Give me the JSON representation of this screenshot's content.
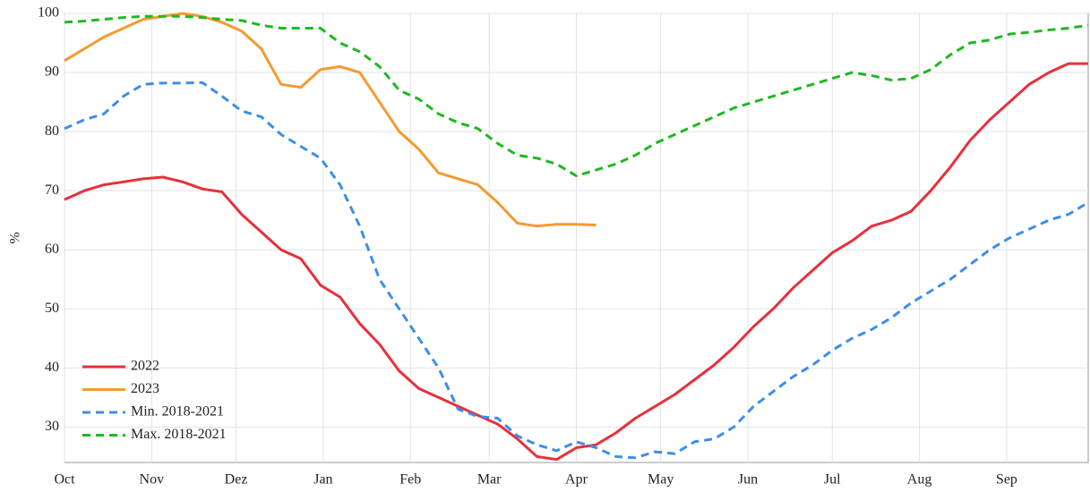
{
  "chart_data": {
    "type": "line",
    "ylabel": "%",
    "x": [
      0,
      7,
      14,
      21,
      28,
      35,
      42,
      49,
      56,
      63,
      70,
      77,
      84,
      91,
      98,
      105,
      112,
      119,
      126,
      133,
      140,
      147,
      154,
      161,
      168,
      175,
      182,
      189,
      196,
      203,
      210,
      217,
      224,
      231,
      238,
      245,
      252,
      259,
      266,
      273,
      280,
      287,
      294,
      301,
      308,
      315,
      322,
      329,
      336,
      343,
      350,
      357,
      364
    ],
    "xlim": [
      0,
      364
    ],
    "xticks": [
      {
        "value": 0,
        "label": "Oct"
      },
      {
        "value": 31,
        "label": "Nov"
      },
      {
        "value": 61,
        "label": "Dez"
      },
      {
        "value": 92,
        "label": "Jan"
      },
      {
        "value": 123,
        "label": "Feb"
      },
      {
        "value": 151,
        "label": "Mar"
      },
      {
        "value": 182,
        "label": "Apr"
      },
      {
        "value": 212,
        "label": "May"
      },
      {
        "value": 243,
        "label": "Jun"
      },
      {
        "value": 273,
        "label": "Jul"
      },
      {
        "value": 304,
        "label": "Aug"
      },
      {
        "value": 335,
        "label": "Sep"
      }
    ],
    "ylim": [
      24,
      100
    ],
    "yticks": [
      30,
      40,
      50,
      60,
      70,
      80,
      90,
      100
    ],
    "grid": true,
    "legend": "bottom-left",
    "series": [
      {
        "name": "2022",
        "color": "#e8303a",
        "style": "solid",
        "values": [
          68.5,
          70,
          71,
          71.5,
          72,
          72.3,
          71.5,
          70.3,
          69.8,
          66,
          63,
          60,
          58.5,
          54,
          52,
          47.5,
          44,
          39.5,
          36.5,
          35,
          33.5,
          32,
          30.5,
          28,
          25,
          24.5,
          26.5,
          27,
          29,
          31.5,
          33.5,
          35.5,
          38,
          40.5,
          43.5,
          47,
          50,
          53.5,
          56.5,
          59.5,
          61.5,
          64,
          65,
          66.5,
          70,
          74,
          78.5,
          82,
          85,
          88,
          90,
          91.5,
          91.5
        ]
      },
      {
        "name": "2023",
        "color": "#f59a2f",
        "style": "solid",
        "values": [
          92,
          94,
          96,
          97.5,
          99,
          99.5,
          100,
          99.5,
          98.5,
          97,
          94,
          88,
          87.5,
          90.5,
          91,
          90,
          85,
          80,
          77,
          73,
          72,
          71,
          68,
          64.5,
          64,
          64.3,
          64.3,
          64.2,
          null,
          null,
          null,
          null,
          null,
          null,
          null,
          null,
          null,
          null,
          null,
          null,
          null,
          null,
          null,
          null,
          null,
          null,
          null,
          null,
          null,
          null,
          null,
          null,
          null
        ]
      },
      {
        "name": "Min. 2018-2021",
        "color": "#3d8ee8",
        "style": "dashed",
        "values": [
          80.5,
          82,
          83,
          86,
          88,
          88.2,
          88.2,
          88.3,
          86,
          83.5,
          82.5,
          79.5,
          77.5,
          75.5,
          71,
          64,
          55,
          50,
          45,
          40,
          33,
          31.8,
          31.5,
          28.5,
          27,
          26,
          27.5,
          26.5,
          25,
          24.8,
          25.8,
          25.5,
          27.5,
          28,
          30,
          33.5,
          36,
          38.5,
          40.5,
          43,
          45,
          46.5,
          48.5,
          51,
          53,
          55,
          57.5,
          60,
          62,
          63.5,
          65,
          66,
          68
        ]
      },
      {
        "name": "Max. 2018-2021",
        "color": "#1fb81f",
        "style": "dashed",
        "values": [
          98.5,
          98.7,
          99,
          99.3,
          99.5,
          99.5,
          99.5,
          99.3,
          99,
          98.8,
          98,
          97.5,
          97.5,
          97.5,
          95,
          93.5,
          91,
          87,
          85.5,
          83,
          81.5,
          80.5,
          78,
          76,
          75.5,
          74.5,
          72.5,
          73.5,
          74.5,
          76,
          78,
          79.5,
          81,
          82.5,
          84,
          85,
          86,
          87,
          88,
          89,
          90,
          89.5,
          88.7,
          89,
          90.5,
          93,
          95,
          95.5,
          96.5,
          96.8,
          97.2,
          97.5,
          98
        ]
      }
    ]
  }
}
